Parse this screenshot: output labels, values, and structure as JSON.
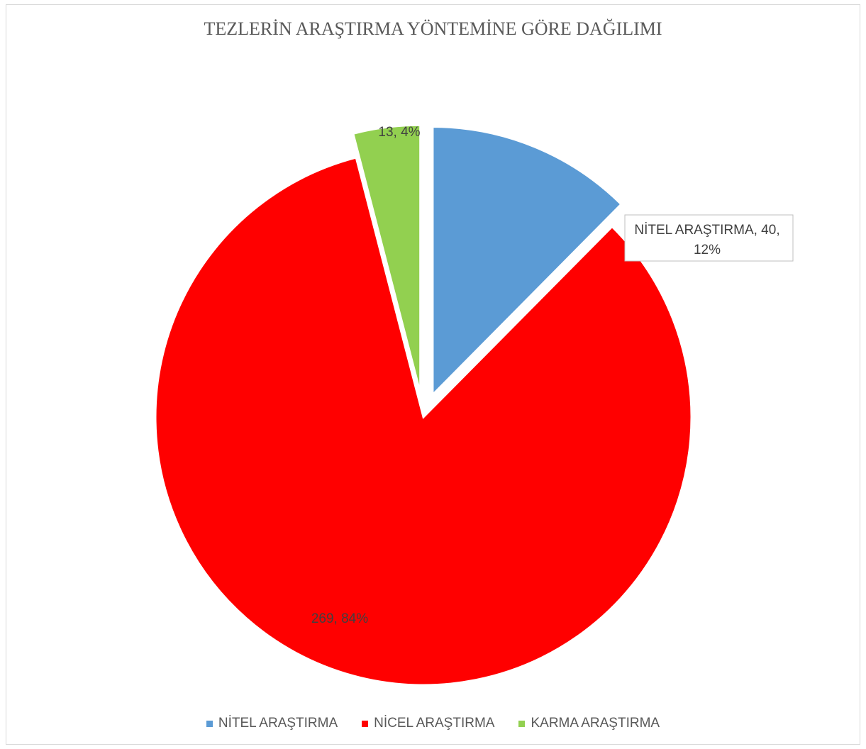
{
  "chart_data": {
    "type": "pie",
    "title": "TEZLERİN ARAŞTIRMA YÖNTEMİNE GÖRE DAĞILIMI",
    "slices": [
      {
        "name": "NİTEL ARAŞTIRMA",
        "value": 40,
        "percent": "12%",
        "label": "NİTEL ARAŞTIRMA, 40, 12%",
        "color": "#5B9BD5",
        "exploded": false
      },
      {
        "name": "NİCEL ARAŞTIRMA",
        "value": 269,
        "percent": "84%",
        "label": "269, 84%",
        "color": "#FF0000",
        "exploded": true
      },
      {
        "name": "KARMA ARAŞTIRMA",
        "value": 13,
        "percent": "4%",
        "label": "13, 4%",
        "color": "#92D050",
        "exploded": false
      }
    ],
    "legend_position": "bottom"
  }
}
